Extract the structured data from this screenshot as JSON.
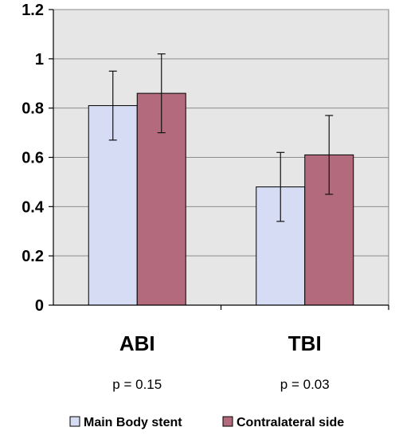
{
  "chart_data": {
    "type": "bar",
    "categories": [
      "ABI",
      "TBI"
    ],
    "series": [
      {
        "name": "Main Body stent",
        "values": [
          0.81,
          0.48
        ],
        "errors": [
          0.14,
          0.14
        ],
        "color": "#d6dcf4"
      },
      {
        "name": "Contralateral side",
        "values": [
          0.86,
          0.61
        ],
        "errors": [
          0.16,
          0.16
        ],
        "color": "#b26a7c"
      }
    ],
    "ylim": [
      0,
      1.2
    ],
    "yticks": [
      "0",
      "0.2",
      "0.4",
      "0.6",
      "0.8",
      "1",
      "1.2"
    ],
    "plot_background": "#e6e6e6",
    "grid": true,
    "legend": "bottom",
    "annotations": [
      "p = 0.15",
      "p = 0.03"
    ],
    "title": "",
    "xlabel": "",
    "ylabel": ""
  }
}
